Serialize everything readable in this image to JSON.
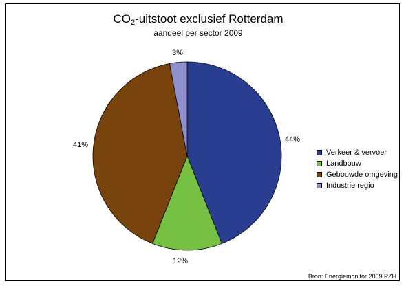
{
  "chart_data": {
    "type": "pie",
    "title_main": "CO",
    "title_sub": "2",
    "title_rest": "-uitstoot exclusief Rotterdam",
    "subtitle": "aandeel per sector 2009",
    "categories": [
      "Verkeer & vervoer",
      "Landbouw",
      "Gebouwde omgeving",
      "Industrie regio"
    ],
    "values": [
      44,
      12,
      41,
      3
    ],
    "labels": [
      "44%",
      "12%",
      "41%",
      "3%"
    ],
    "colors": [
      "#2a3e91",
      "#76c043",
      "#78430c",
      "#8f8fcc"
    ],
    "legend_position": "right",
    "source": "Bron: Energiemonitor 2009 PZH"
  }
}
